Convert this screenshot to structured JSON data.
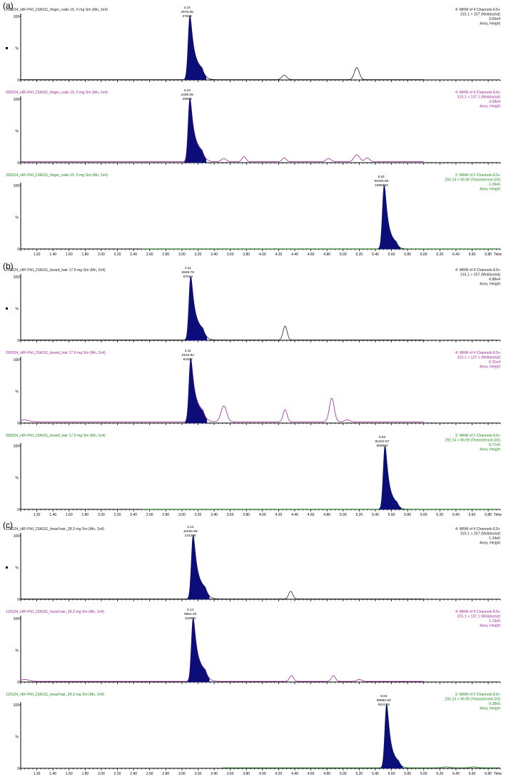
{
  "colors": {
    "black": "#222222",
    "magenta": "#a0279b",
    "green": "#1f8a1f",
    "fill": "#0d0d7a"
  },
  "x_tick_labels": [
    "1.20",
    "1.40",
    "1.60",
    "1.80",
    "2.00",
    "2.20",
    "2.40",
    "2.60",
    "2.80",
    "3.00",
    "3.20",
    "3.40",
    "3.60",
    "3.80",
    "4.00",
    "4.20",
    "4.40",
    "4.60",
    "4.80",
    "5.00",
    "5.20",
    "5.40",
    "5.60",
    "5.80",
    "6.00",
    "6.20",
    "6.40",
    "6.60",
    "6.80"
  ],
  "chart_data": {
    "type": "line",
    "x_axis_label": "Time",
    "xlim": [
      1.0,
      6.95
    ],
    "ylim": [
      0,
      100
    ],
    "y_tick_labels": [
      "100",
      "%",
      "0"
    ],
    "panels": [
      {
        "label": "(a)",
        "traces": [
          {
            "color_key": "black",
            "sample": "200224_HIF-PHI_23A311_finger_nails 15, 0 mg Sm (Mn, 2x4)",
            "info": [
              "4: MRM of 4 Channels ES+",
              "315.1 > 207 (Molidustat)",
              "3.65e4",
              "Area, Height"
            ],
            "peak": {
              "rt": "3.10",
              "height": "2979.65",
              "area": "37808",
              "x": 3.1
            },
            "peaks": [
              {
                "x": 3.1,
                "h": 100,
                "w": 0.022,
                "tail": 0.06,
                "fill": true
              },
              {
                "x": 4.27,
                "h": 7,
                "w": 0.03
              },
              {
                "x": 5.17,
                "h": 19,
                "w": 0.03
              }
            ],
            "baseline": 0.5,
            "xrange": [
              1.0,
              6.0
            ]
          },
          {
            "color_key": "magenta",
            "sample": "200224_HIF-PHI_23A311_finger_nails 15, 0 mg Sm (Mn, 2x4)",
            "info": [
              "4: MRM of 4 Channels ES+",
              "315.1 > 137.1 (Molidustat)",
              "3.08e4",
              "Area, Height"
            ],
            "peak": {
              "rt": "3.10",
              "height": "2485.08",
              "area": "29906",
              "x": 3.1
            },
            "peaks": [
              {
                "x": 3.1,
                "h": 100,
                "w": 0.022,
                "tail": 0.06,
                "fill": true
              },
              {
                "x": 3.52,
                "h": 5,
                "w": 0.03
              },
              {
                "x": 3.77,
                "h": 8,
                "w": 0.025
              },
              {
                "x": 4.27,
                "h": 6,
                "w": 0.025
              },
              {
                "x": 4.82,
                "h": 5,
                "w": 0.03
              },
              {
                "x": 5.17,
                "h": 11,
                "w": 0.035
              },
              {
                "x": 5.3,
                "h": 6,
                "w": 0.03
              }
            ],
            "baseline": 1.5,
            "xrange": [
              1.0,
              6.0
            ]
          },
          {
            "color_key": "green",
            "sample": "200224_HIF-PHI_23A311_finger_nails 15, 0 mg Sm (Mn, 2x4)",
            "info": [
              "2: MRM of 2 Channels ES+",
              "292.24 > 96.99 (Testosterone-D3)",
              "1.09e6",
              "Area, Height"
            ],
            "peak": {
              "rt": "5.51",
              "height": "94293.56",
              "area": "1086993",
              "x": 5.51
            },
            "peaks": [
              {
                "x": 5.51,
                "h": 100,
                "w": 0.022,
                "tail": 0.05,
                "fill": true
              }
            ],
            "baseline": 0.3,
            "xrange": [
              2.5,
              6.95
            ]
          }
        ]
      },
      {
        "label": "(b)",
        "traces": [
          {
            "color_key": "black",
            "sample": "200224_HIF-PHI_23A311_beard_hair 17.9 mg Sm (Mn, 2x4)",
            "info": [
              "4: MRM of 4 Channels ES+",
              "315.1 > 207 (Molidustat)",
              "6.88e4",
              "Area, Height"
            ],
            "peak": {
              "rt": "3.11",
              "height": "5559.78",
              "area": "67618",
              "x": 3.11
            },
            "peaks": [
              {
                "x": 3.11,
                "h": 100,
                "w": 0.022,
                "tail": 0.06,
                "fill": true
              },
              {
                "x": 4.28,
                "h": 22,
                "w": 0.025
              }
            ],
            "baseline": 0.5,
            "xrange": [
              1.0,
              6.0
            ]
          },
          {
            "color_key": "magenta",
            "sample": "200224_HIF-PHI_23A311_beard_hair 17.9 mg Sm (Mn, 2x4)",
            "info": [
              "4: MRM of 4 Channels ES+",
              "315.1 > 137.1 (Molidustat)",
              "6.31e4",
              "Area, Height"
            ],
            "peak": {
              "rt": "3.11",
              "height": "5164.92",
              "area": "61827",
              "x": 3.11
            },
            "peaks": [
              {
                "x": 3.11,
                "h": 100,
                "w": 0.022,
                "tail": 0.06,
                "fill": true
              },
              {
                "x": 3.52,
                "h": 25,
                "w": 0.035
              },
              {
                "x": 4.28,
                "h": 19,
                "w": 0.025
              },
              {
                "x": 4.86,
                "h": 37,
                "w": 0.03
              },
              {
                "x": 1.05,
                "h": 3,
                "w": 0.05
              },
              {
                "x": 5.05,
                "h": 3,
                "w": 0.03
              }
            ],
            "baseline": 2.0,
            "xrange": [
              1.0,
              6.0
            ]
          },
          {
            "color_key": "green",
            "sample": "200224_HIF-PHI_23A311_beard_hair 17.9 mg Sm (Mn, 2x4)",
            "info": [
              "2: MRM of 2 Channels ES+",
              "292.24 > 96.99 (Testosterone-D3)",
              "8.71e5",
              "Area, Height"
            ],
            "peak": {
              "rt": "5.52",
              "height": "81102.57",
              "area": "865822",
              "x": 5.52
            },
            "peaks": [
              {
                "x": 5.52,
                "h": 100,
                "w": 0.022,
                "tail": 0.05,
                "fill": true
              }
            ],
            "baseline": 0.3,
            "xrange": [
              2.5,
              6.95
            ]
          }
        ]
      },
      {
        "label": "(c)",
        "traces": [
          {
            "color_key": "black",
            "sample": "120124_HIF-PHI_23A311_head hair_28.3 mg Sm (Mn, 2x4)",
            "info": [
              "4: MRM of 4 Channels ES+",
              "315.1 > 207 (Molidustat)",
              "1.34e5",
              "Area, Height"
            ],
            "peak": {
              "rt": "3.14",
              "height": "11032.99",
              "area": "131265",
              "x": 3.14
            },
            "peaks": [
              {
                "x": 3.14,
                "h": 100,
                "w": 0.022,
                "tail": 0.06,
                "fill": true
              },
              {
                "x": 4.35,
                "h": 12,
                "w": 0.025
              }
            ],
            "baseline": 0.5,
            "xrange": [
              1.0,
              6.0
            ]
          },
          {
            "color_key": "magenta",
            "sample": "120124_HIF-PHI_23A311_head hair_28.3 mg Sm (Mn, 2x4)",
            "info": [
              "4: MRM of 4 Channels ES+",
              "315.1 > 137.1 (Molidustat)",
              "1.19e5",
              "Area, Height"
            ],
            "peak": {
              "rt": "3.14",
              "height": "9861.20",
              "area": "116682",
              "x": 3.14
            },
            "peaks": [
              {
                "x": 3.14,
                "h": 100,
                "w": 0.022,
                "tail": 0.06,
                "fill": true
              },
              {
                "x": 4.36,
                "h": 9,
                "w": 0.025
              },
              {
                "x": 4.88,
                "h": 9,
                "w": 0.025
              },
              {
                "x": 5.2,
                "h": 3,
                "w": 0.03
              },
              {
                "x": 1.05,
                "h": 3,
                "w": 0.05
              }
            ],
            "baseline": 1.0,
            "xrange": [
              1.0,
              6.0
            ]
          },
          {
            "color_key": "green",
            "sample": "120124_HIF-PHI_23A311_head hair_28.3 mg Sm (Mn, 2x4)",
            "info": [
              "2: MRM of 2 Channels ES+",
              "292.24 > 96.99 (Testosterone-D3)",
              "9.38e5",
              "Area, Height"
            ],
            "peak": {
              "rt": "5.54",
              "height": "88962.60",
              "area": "924139",
              "x": 5.54
            },
            "peaks": [
              {
                "x": 5.54,
                "h": 100,
                "w": 0.022,
                "tail": 0.05,
                "fill": true
              },
              {
                "x": 6.28,
                "h": 1.5,
                "w": 0.04
              },
              {
                "x": 6.62,
                "h": 1.5,
                "w": 0.04
              }
            ],
            "baseline": 0.8,
            "xrange": [
              3.5,
              6.95
            ]
          }
        ]
      }
    ]
  }
}
